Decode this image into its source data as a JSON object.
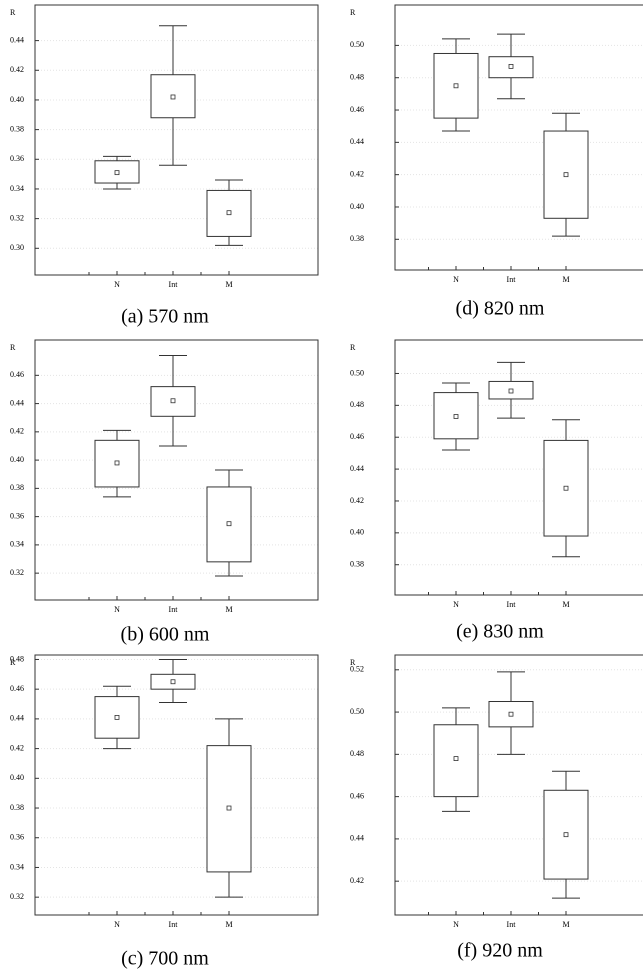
{
  "chart_data": [
    {
      "type": "box",
      "caption": "(a) 570 nm",
      "y_label": "R",
      "categories": [
        "N",
        "Int",
        "M"
      ],
      "whisker_low": [
        0.34,
        0.356,
        0.302
      ],
      "box_low": [
        0.344,
        0.388,
        0.308
      ],
      "center": [
        0.351,
        0.402,
        0.324
      ],
      "box_high": [
        0.359,
        0.417,
        0.339
      ],
      "whisker_high": [
        0.362,
        0.45,
        0.346
      ],
      "ylim": [
        0.282,
        0.464
      ],
      "yticks": [
        {
          "value": 0.3,
          "label": "0.30"
        },
        0.32,
        0.34,
        0.36,
        0.38,
        {
          "value": 0.4,
          "label": "0.40"
        },
        0.42,
        0.44
      ],
      "grid": true,
      "color": "#ffffff"
    },
    {
      "type": "box",
      "caption": "(d) 820 nm",
      "y_label": "R",
      "categories": [
        "N",
        "Int",
        "M"
      ],
      "whisker_low": [
        0.447,
        0.467,
        0.382
      ],
      "box_low": [
        0.455,
        0.48,
        0.393
      ],
      "center": [
        0.475,
        0.487,
        0.42
      ],
      "box_high": [
        0.495,
        0.493,
        0.447
      ],
      "whisker_high": [
        0.504,
        0.507,
        0.458
      ],
      "ylim": [
        0.361,
        0.525
      ],
      "yticks": [
        0.38,
        {
          "value": 0.4,
          "label": "0.40"
        },
        0.42,
        0.44,
        0.46,
        0.48,
        {
          "value": 0.5,
          "label": "0.50"
        }
      ],
      "grid": true,
      "color": "#ffffff"
    },
    {
      "type": "box",
      "caption": "(b) 600 nm",
      "y_label": "R",
      "categories": [
        "N",
        "Int",
        "M"
      ],
      "whisker_low": [
        0.374,
        0.41,
        0.318
      ],
      "box_low": [
        0.381,
        0.431,
        0.328
      ],
      "center": [
        0.398,
        0.442,
        0.355
      ],
      "box_high": [
        0.414,
        0.452,
        0.381
      ],
      "whisker_high": [
        0.421,
        0.474,
        0.393
      ],
      "ylim": [
        0.301,
        0.485
      ],
      "yticks": [
        0.32,
        0.34,
        0.36,
        0.38,
        {
          "value": 0.4,
          "label": "0.40"
        },
        0.42,
        0.44,
        0.46
      ],
      "grid": true,
      "color": "#ffffff"
    },
    {
      "type": "box",
      "caption": "(e) 830 nm",
      "y_label": "R",
      "categories": [
        "N",
        "Int",
        "M"
      ],
      "whisker_low": [
        0.452,
        0.472,
        0.385
      ],
      "box_low": [
        0.459,
        0.484,
        0.398
      ],
      "center": [
        0.473,
        0.489,
        0.428
      ],
      "box_high": [
        0.488,
        0.495,
        0.458
      ],
      "whisker_high": [
        0.494,
        0.507,
        0.471
      ],
      "ylim": [
        0.361,
        0.521
      ],
      "yticks": [
        0.38,
        {
          "value": 0.4,
          "label": "0.40"
        },
        0.42,
        0.44,
        0.46,
        0.48,
        {
          "value": 0.5,
          "label": "0.50"
        }
      ],
      "grid": true,
      "color": "#ffffff"
    },
    {
      "type": "box",
      "caption": "(c) 700 nm",
      "y_label": "R",
      "categories": [
        "N",
        "Int",
        "M"
      ],
      "whisker_low": [
        0.42,
        0.451,
        0.32
      ],
      "box_low": [
        0.427,
        0.46,
        0.337
      ],
      "center": [
        0.441,
        0.465,
        0.38
      ],
      "box_high": [
        0.455,
        0.47,
        0.422
      ],
      "whisker_high": [
        0.462,
        0.48,
        0.44
      ],
      "ylim": [
        0.308,
        0.483
      ],
      "yticks": [
        0.32,
        0.34,
        0.36,
        0.38,
        {
          "value": 0.4,
          "label": "0.40"
        },
        0.42,
        0.44,
        0.46,
        0.48
      ],
      "grid": true,
      "color": "#ffffff"
    },
    {
      "type": "box",
      "caption": "(f) 920 nm",
      "y_label": "R",
      "categories": [
        "N",
        "Int",
        "M"
      ],
      "whisker_low": [
        0.453,
        0.48,
        0.412
      ],
      "box_low": [
        0.46,
        0.493,
        0.421
      ],
      "center": [
        0.478,
        0.499,
        0.442
      ],
      "box_high": [
        0.494,
        0.505,
        0.463
      ],
      "whisker_high": [
        0.502,
        0.519,
        0.472
      ],
      "ylim": [
        0.404,
        0.527
      ],
      "yticks": [
        0.42,
        0.44,
        0.46,
        0.48,
        {
          "value": 0.5,
          "label": "0.50"
        },
        0.52
      ],
      "grid": true,
      "color": "#ffffff"
    }
  ]
}
